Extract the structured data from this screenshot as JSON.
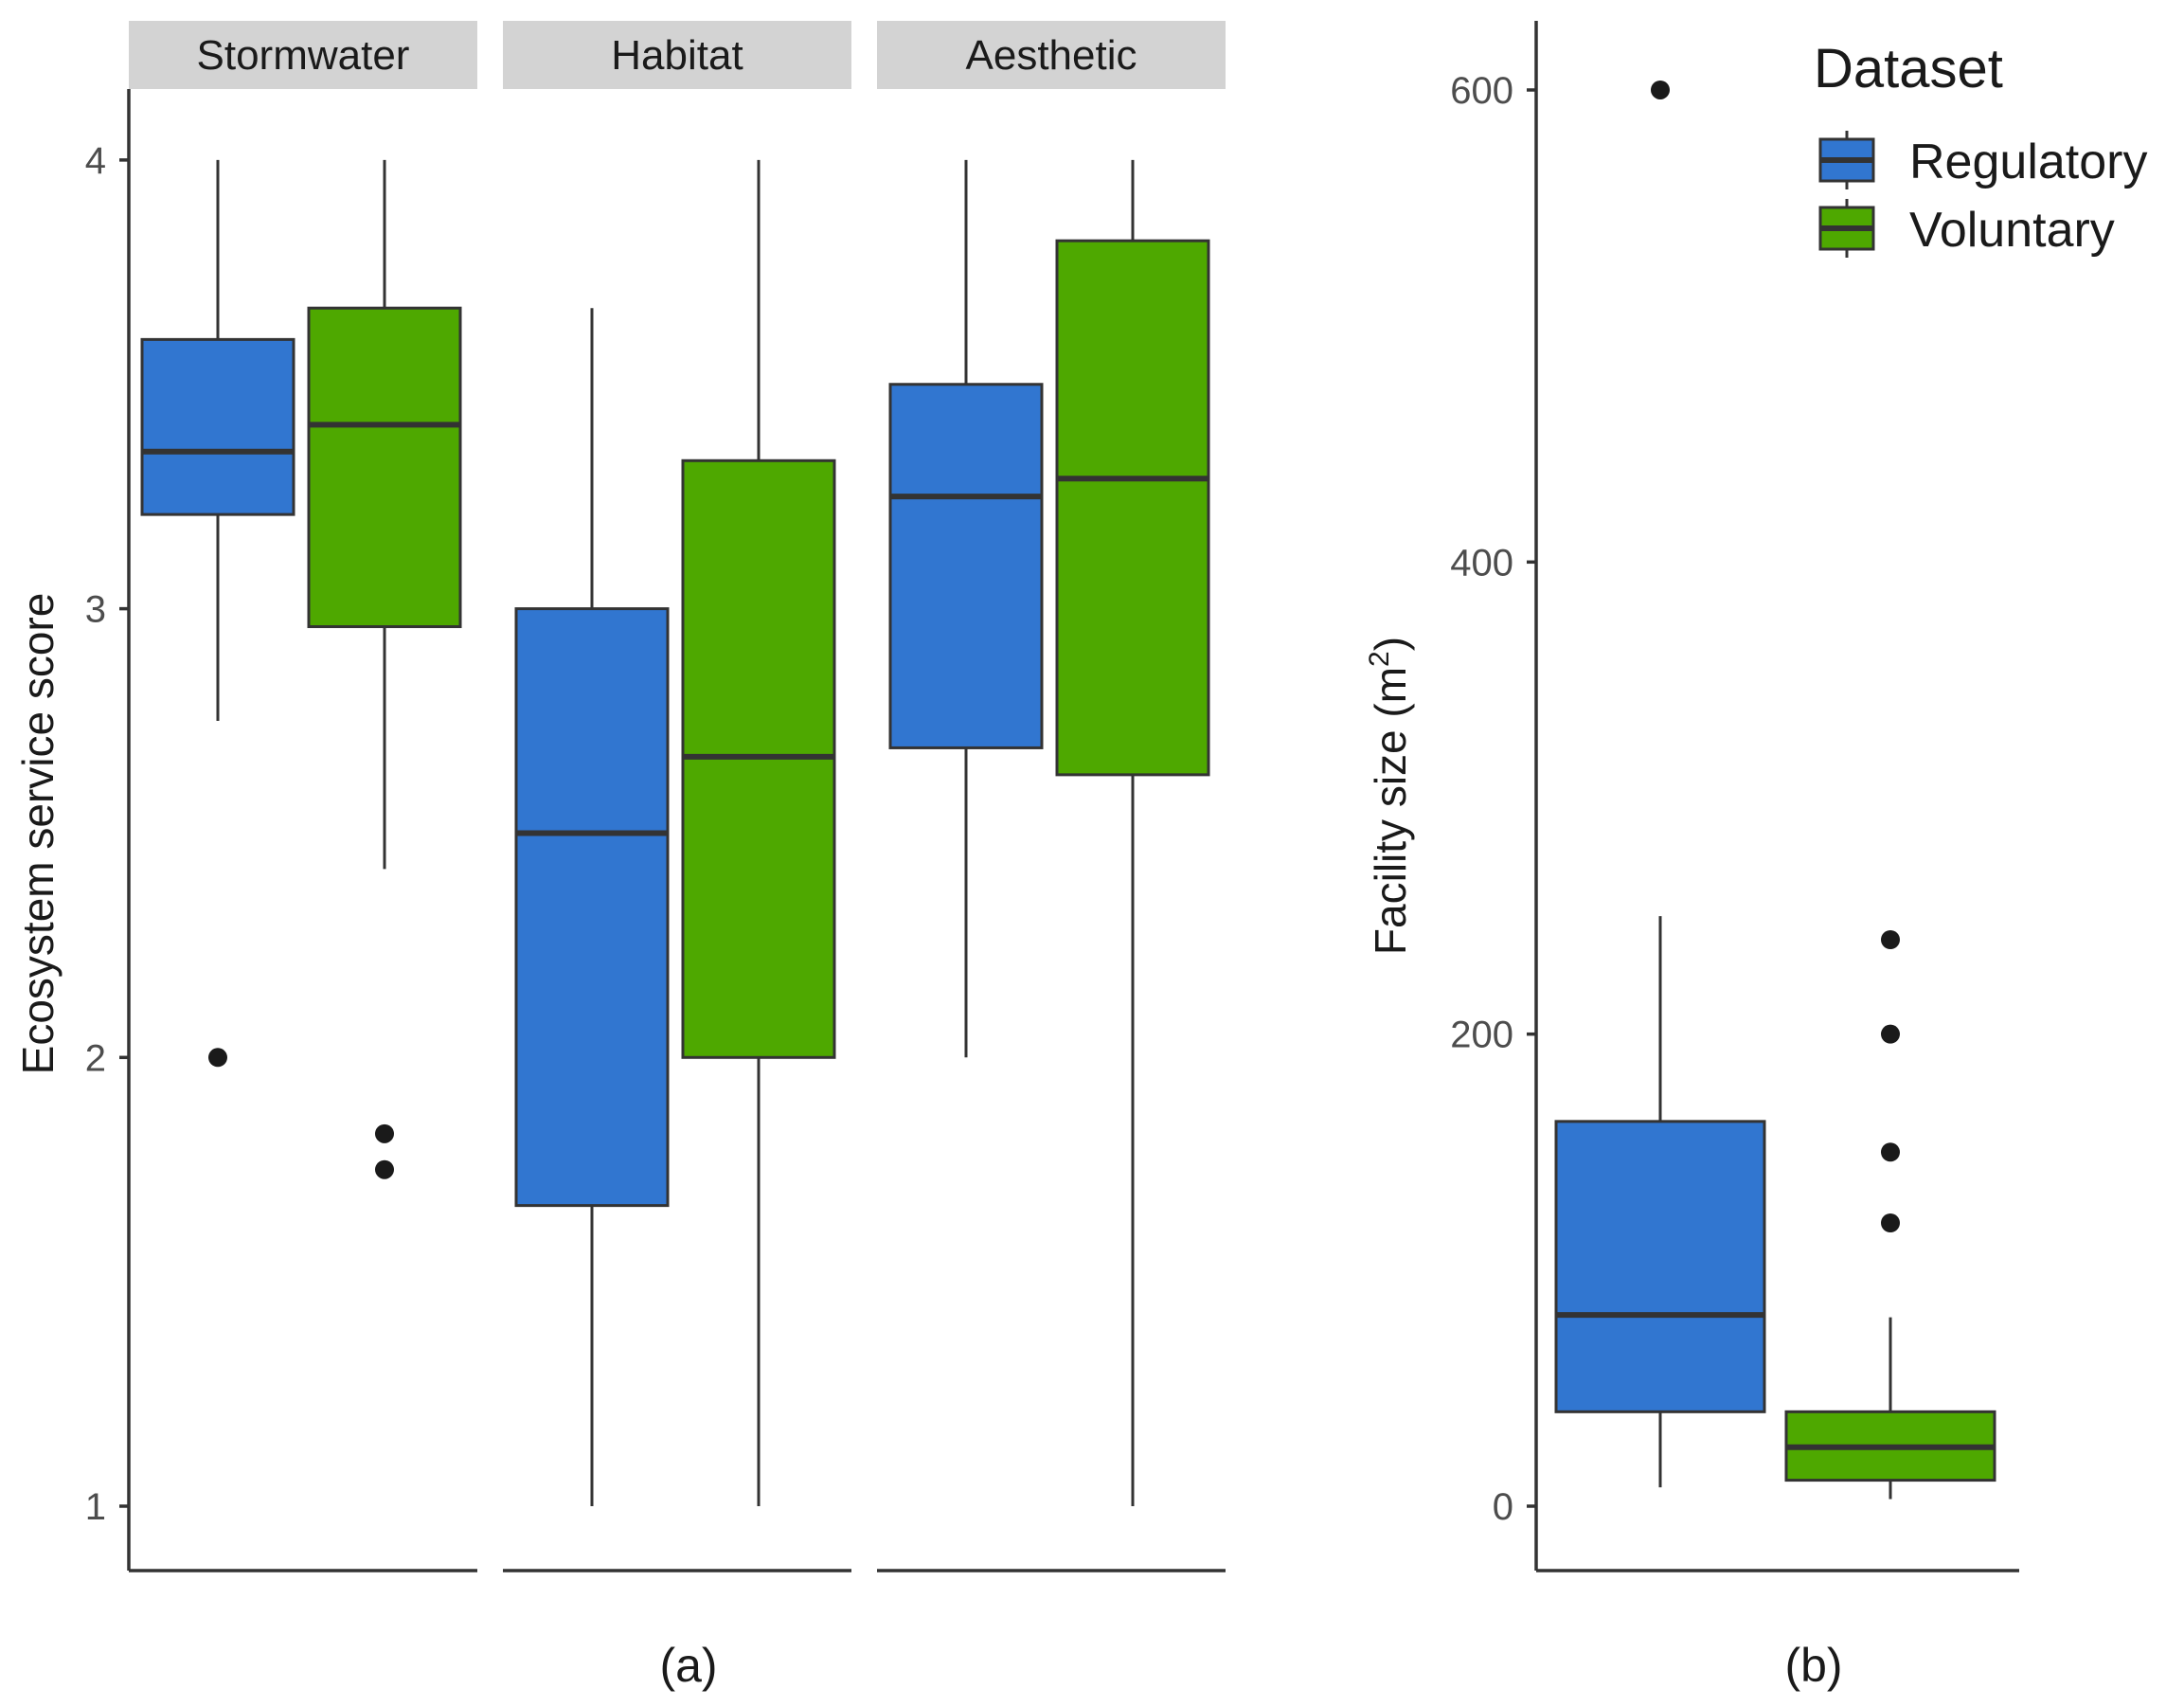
{
  "chart_data": [
    {
      "type": "boxplot",
      "panel_label": "(a)",
      "ylabel": "Ecosystem service score",
      "xlabel": "",
      "ylim": [
        0.9,
        4.15
      ],
      "yticks": [
        "1",
        "2",
        "3",
        "4"
      ],
      "facets": [
        {
          "name": "Stormwater",
          "boxes": [
            {
              "series": "Regulatory",
              "min": 2.75,
              "q1": 3.21,
              "median": 3.35,
              "q3": 3.6,
              "max": 4.0,
              "outliers": [
                2.0
              ]
            },
            {
              "series": "Voluntary",
              "min": 2.42,
              "q1": 2.96,
              "median": 3.41,
              "q3": 3.67,
              "max": 4.0,
              "outliers": [
                1.83,
                1.75
              ]
            }
          ]
        },
        {
          "name": "Habitat",
          "boxes": [
            {
              "series": "Regulatory",
              "min": 1.0,
              "q1": 1.67,
              "median": 2.5,
              "q3": 3.0,
              "max": 3.67,
              "outliers": []
            },
            {
              "series": "Voluntary",
              "min": 1.0,
              "q1": 2.0,
              "median": 2.67,
              "q3": 3.33,
              "max": 4.0,
              "outliers": []
            }
          ]
        },
        {
          "name": "Aesthetic",
          "boxes": [
            {
              "series": "Regulatory",
              "min": 2.0,
              "q1": 2.69,
              "median": 3.25,
              "q3": 3.5,
              "max": 4.0,
              "outliers": []
            },
            {
              "series": "Voluntary",
              "min": 1.0,
              "q1": 2.63,
              "median": 3.29,
              "q3": 3.82,
              "max": 4.0,
              "outliers": []
            }
          ]
        }
      ]
    },
    {
      "type": "boxplot",
      "panel_label": "(b)",
      "ylabel": "Facility size (m",
      "ylabel_superscript": "2",
      "ylabel_suffix": ")",
      "xlabel": "",
      "ylim": [
        -28,
        630
      ],
      "yticks": [
        "0",
        "200",
        "400",
        "600"
      ],
      "boxes": [
        {
          "series": "Regulatory",
          "min": 8,
          "q1": 40,
          "median": 81,
          "q3": 163,
          "max": 250,
          "outliers": [
            600
          ]
        },
        {
          "series": "Voluntary",
          "min": 3,
          "q1": 11,
          "median": 25,
          "q3": 40,
          "max": 80,
          "outliers": [
            240,
            200,
            150,
            120
          ]
        }
      ]
    }
  ],
  "legend": {
    "title": "Dataset",
    "items": [
      {
        "label": "Regulatory",
        "color": "#3176d0"
      },
      {
        "label": "Voluntary",
        "color": "#4ea800"
      }
    ]
  },
  "colors": {
    "Regulatory": "#3176d0",
    "Voluntary": "#4ea800"
  }
}
